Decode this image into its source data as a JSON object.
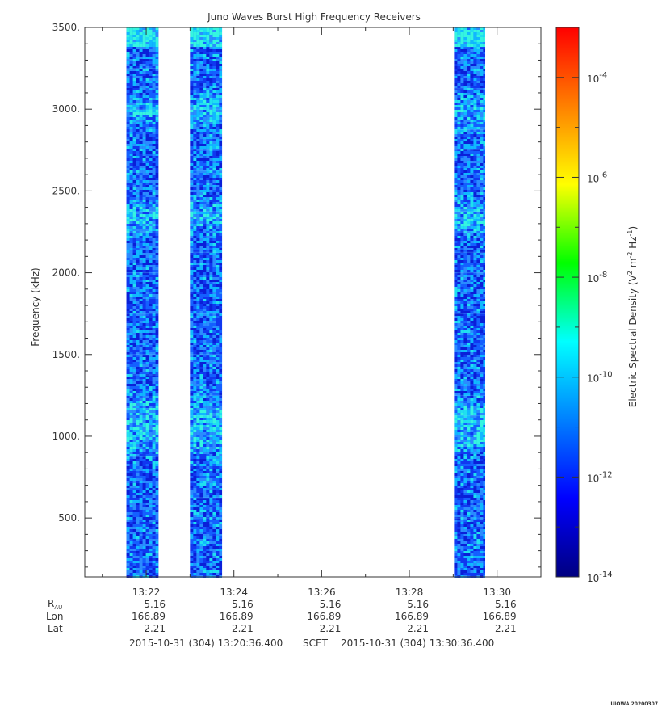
{
  "chart_data": {
    "type": "heatmap",
    "title": "Juno Waves Burst High Frequency Receivers",
    "ylabel": "Frequency (kHz)",
    "yticks": [
      "500.",
      "1000.",
      "1500.",
      "2000.",
      "2500.",
      "3000.",
      "3500."
    ],
    "ytick_values": [
      500,
      1000,
      1500,
      2000,
      2500,
      3000,
      3500
    ],
    "ylim": [
      140,
      3500
    ],
    "xlim_minutes": [
      20.6,
      31.0
    ],
    "xticks": [
      "13:22",
      "13:24",
      "13:26",
      "13:28",
      "13:30"
    ],
    "xtick_minutes": [
      22,
      24,
      26,
      28,
      30
    ],
    "data_segments_minutes": [
      [
        21.55,
        22.28
      ],
      [
        23.0,
        23.73
      ],
      [
        29.02,
        29.73
      ]
    ],
    "bright_bands_khz": [
      1000,
      1150,
      2350,
      3000
    ],
    "colorbar": {
      "label_main": "Electric Spectral Density (V",
      "label_mid": " m",
      "label_mid2": " Hz",
      "label_end": ")",
      "exp_sq": "2",
      "exp_m": "-2",
      "exp_hz": "-1",
      "scale": "log",
      "min": 1e-14,
      "max": 0.001,
      "tick_base": "10",
      "tick_exponents": [
        "-14",
        "-12",
        "-10",
        "-8",
        "-6",
        "-4"
      ],
      "colors": [
        "#000080",
        "#0000ff",
        "#0080ff",
        "#00ffff",
        "#00ff00",
        "#ffff00",
        "#ff8000",
        "#ff0000"
      ]
    },
    "ephemeris": {
      "labels": {
        "rau": "R",
        "rau_sub": "AU",
        "lon": "Lon",
        "lat": "Lat"
      },
      "rows": [
        {
          "rau": "5.16",
          "lon": "166.89",
          "lat": "2.21"
        },
        {
          "rau": "5.16",
          "lon": "166.89",
          "lat": "2.21"
        },
        {
          "rau": "5.16",
          "lon": "166.89",
          "lat": "2.21"
        },
        {
          "rau": "5.16",
          "lon": "166.89",
          "lat": "2.21"
        },
        {
          "rau": "5.16",
          "lon": "166.89",
          "lat": "2.21"
        }
      ]
    },
    "time_range": {
      "start": "2015-10-31 (304) 13:20:36.400",
      "frame": "SCET",
      "end": "2015-10-31 (304) 13:30:36.400"
    },
    "credit": "UIOWA 20200307"
  }
}
